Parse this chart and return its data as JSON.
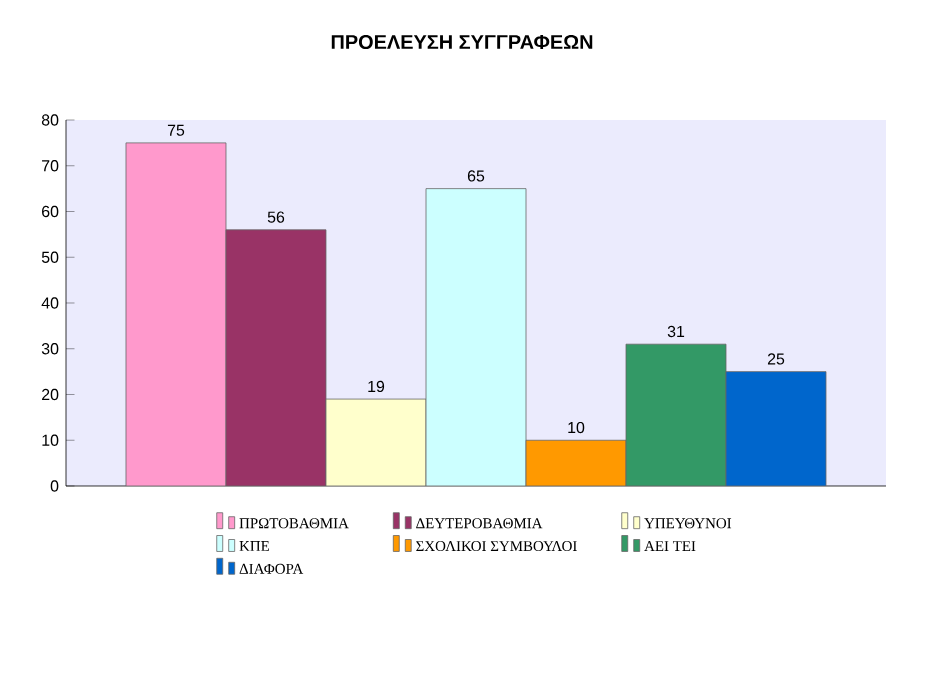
{
  "chart_data": {
    "type": "bar",
    "title": "ΠΡΟΕΛΕΥΣΗ ΣΥΓΓΡΑΦΕΩΝ",
    "categories": [
      null
    ],
    "series": [
      {
        "name": "ΠΡΩΤΟΒΑΘΜΙΑ",
        "color": "#ff99cc",
        "values": [
          75
        ]
      },
      {
        "name": "ΔΕΥΤΕΡΟΒΑΘΜΙΑ",
        "color": "#993366",
        "values": [
          56
        ]
      },
      {
        "name": "ΥΠΕΥΘΥΝΟΙ",
        "color": "#ffffcc",
        "values": [
          19
        ]
      },
      {
        "name": "ΚΠΕ",
        "color": "#ccffff",
        "values": [
          65
        ]
      },
      {
        "name": "ΣΧΟΛΙΚΟΙ ΣΥΜΒΟΥΛΟΙ",
        "color": "#ff9900",
        "values": [
          10
        ]
      },
      {
        "name": "ΑΕΙ ΤΕΙ",
        "color": "#339966",
        "values": [
          31
        ]
      },
      {
        "name": "ΔΙΑΦΟΡΑ",
        "color": "#0066cc",
        "values": [
          25
        ]
      }
    ],
    "ylim": [
      0,
      80
    ],
    "yticks": [
      0,
      10,
      20,
      30,
      40,
      50,
      60,
      70,
      80
    ],
    "data_labels": true,
    "legend": "bottom",
    "grid": false
  }
}
